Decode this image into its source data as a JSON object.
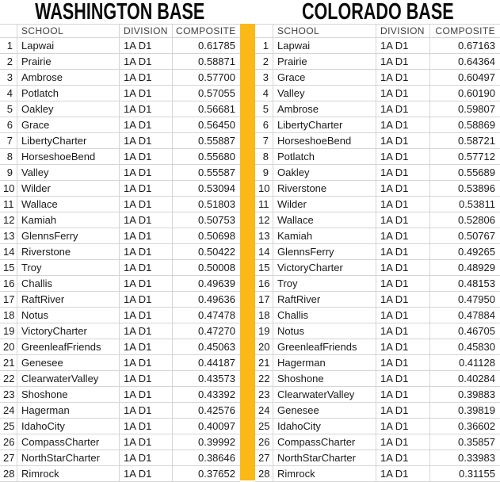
{
  "colors": {
    "divider_gold": "#FBB917"
  },
  "tables": [
    {
      "title": "WASHINGTON BASE",
      "headers": {
        "rank": "",
        "school": "SCHOOL",
        "division": "DIVISION",
        "composite": "COMPOSITE"
      },
      "rows": [
        {
          "rank": "1",
          "school": "Lapwai",
          "division": "1A D1",
          "composite": "0.61785"
        },
        {
          "rank": "2",
          "school": "Prairie",
          "division": "1A D1",
          "composite": "0.58871"
        },
        {
          "rank": "3",
          "school": "Ambrose",
          "division": "1A D1",
          "composite": "0.57700"
        },
        {
          "rank": "4",
          "school": "Potlatch",
          "division": "1A D1",
          "composite": "0.57055"
        },
        {
          "rank": "5",
          "school": "Oakley",
          "division": "1A D1",
          "composite": "0.56681"
        },
        {
          "rank": "6",
          "school": "Grace",
          "division": "1A D1",
          "composite": "0.56450"
        },
        {
          "rank": "7",
          "school": "LibertyCharter",
          "division": "1A D1",
          "composite": "0.55887"
        },
        {
          "rank": "8",
          "school": "HorseshoeBend",
          "division": "1A D1",
          "composite": "0.55680"
        },
        {
          "rank": "9",
          "school": "Valley",
          "division": "1A D1",
          "composite": "0.55587"
        },
        {
          "rank": "10",
          "school": "Wilder",
          "division": "1A D1",
          "composite": "0.53094"
        },
        {
          "rank": "11",
          "school": "Wallace",
          "division": "1A D1",
          "composite": "0.51803"
        },
        {
          "rank": "12",
          "school": "Kamiah",
          "division": "1A D1",
          "composite": "0.50753"
        },
        {
          "rank": "13",
          "school": "GlennsFerry",
          "division": "1A D1",
          "composite": "0.50698"
        },
        {
          "rank": "14",
          "school": "Riverstone",
          "division": "1A D1",
          "composite": "0.50422"
        },
        {
          "rank": "15",
          "school": "Troy",
          "division": "1A D1",
          "composite": "0.50008"
        },
        {
          "rank": "16",
          "school": "Challis",
          "division": "1A D1",
          "composite": "0.49639"
        },
        {
          "rank": "17",
          "school": "RaftRiver",
          "division": "1A D1",
          "composite": "0.49636"
        },
        {
          "rank": "18",
          "school": "Notus",
          "division": "1A D1",
          "composite": "0.47478"
        },
        {
          "rank": "19",
          "school": "VictoryCharter",
          "division": "1A D1",
          "composite": "0.47270"
        },
        {
          "rank": "20",
          "school": "GreenleafFriends",
          "division": "1A D1",
          "composite": "0.45063"
        },
        {
          "rank": "21",
          "school": "Genesee",
          "division": "1A D1",
          "composite": "0.44187"
        },
        {
          "rank": "22",
          "school": "ClearwaterValley",
          "division": "1A D1",
          "composite": "0.43573"
        },
        {
          "rank": "23",
          "school": "Shoshone",
          "division": "1A D1",
          "composite": "0.43392"
        },
        {
          "rank": "24",
          "school": "Hagerman",
          "division": "1A D1",
          "composite": "0.42576"
        },
        {
          "rank": "25",
          "school": "IdahoCity",
          "division": "1A D1",
          "composite": "0.40097"
        },
        {
          "rank": "26",
          "school": "CompassCharter",
          "division": "1A D1",
          "composite": "0.39992"
        },
        {
          "rank": "27",
          "school": "NorthStarCharter",
          "division": "1A D1",
          "composite": "0.38646"
        },
        {
          "rank": "28",
          "school": "Rimrock",
          "division": "1A D1",
          "composite": "0.37652"
        }
      ]
    },
    {
      "title": "COLORADO BASE",
      "headers": {
        "rank": "",
        "school": "SCHOOL",
        "division": "DIVISION",
        "composite": "COMPOSITE"
      },
      "rows": [
        {
          "rank": "1",
          "school": "Lapwai",
          "division": "1A D1",
          "composite": "0.67163"
        },
        {
          "rank": "2",
          "school": "Prairie",
          "division": "1A D1",
          "composite": "0.64364"
        },
        {
          "rank": "3",
          "school": "Grace",
          "division": "1A D1",
          "composite": "0.60497"
        },
        {
          "rank": "4",
          "school": "Valley",
          "division": "1A D1",
          "composite": "0.60190"
        },
        {
          "rank": "5",
          "school": "Ambrose",
          "division": "1A D1",
          "composite": "0.59807"
        },
        {
          "rank": "6",
          "school": "LibertyCharter",
          "division": "1A D1",
          "composite": "0.58869"
        },
        {
          "rank": "7",
          "school": "HorseshoeBend",
          "division": "1A D1",
          "composite": "0.58721"
        },
        {
          "rank": "8",
          "school": "Potlatch",
          "division": "1A D1",
          "composite": "0.57712"
        },
        {
          "rank": "9",
          "school": "Oakley",
          "division": "1A D1",
          "composite": "0.55689"
        },
        {
          "rank": "10",
          "school": "Riverstone",
          "division": "1A D1",
          "composite": "0.53896"
        },
        {
          "rank": "11",
          "school": "Wilder",
          "division": "1A D1",
          "composite": "0.53811"
        },
        {
          "rank": "12",
          "school": "Wallace",
          "division": "1A D1",
          "composite": "0.52806"
        },
        {
          "rank": "13",
          "school": "Kamiah",
          "division": "1A D1",
          "composite": "0.50767"
        },
        {
          "rank": "14",
          "school": "GlennsFerry",
          "division": "1A D1",
          "composite": "0.49265"
        },
        {
          "rank": "15",
          "school": "VictoryCharter",
          "division": "1A D1",
          "composite": "0.48929"
        },
        {
          "rank": "16",
          "school": "Troy",
          "division": "1A D1",
          "composite": "0.48153"
        },
        {
          "rank": "17",
          "school": "RaftRiver",
          "division": "1A D1",
          "composite": "0.47950"
        },
        {
          "rank": "18",
          "school": "Challis",
          "division": "1A D1",
          "composite": "0.47884"
        },
        {
          "rank": "19",
          "school": "Notus",
          "division": "1A D1",
          "composite": "0.46705"
        },
        {
          "rank": "20",
          "school": "GreenleafFriends",
          "division": "1A D1",
          "composite": "0.45830"
        },
        {
          "rank": "21",
          "school": "Hagerman",
          "division": "1A D1",
          "composite": "0.41128"
        },
        {
          "rank": "22",
          "school": "Shoshone",
          "division": "1A D1",
          "composite": "0.40284"
        },
        {
          "rank": "23",
          "school": "ClearwaterValley",
          "division": "1A D1",
          "composite": "0.39883"
        },
        {
          "rank": "24",
          "school": "Genesee",
          "division": "1A D1",
          "composite": "0.39819"
        },
        {
          "rank": "25",
          "school": "IdahoCity",
          "division": "1A D1",
          "composite": "0.36602"
        },
        {
          "rank": "26",
          "school": "CompassCharter",
          "division": "1A D1",
          "composite": "0.35857"
        },
        {
          "rank": "27",
          "school": "NorthStarCharter",
          "division": "1A D1",
          "composite": "0.33983"
        },
        {
          "rank": "28",
          "school": "Rimrock",
          "division": "1A D1",
          "composite": "0.31155"
        }
      ]
    }
  ]
}
